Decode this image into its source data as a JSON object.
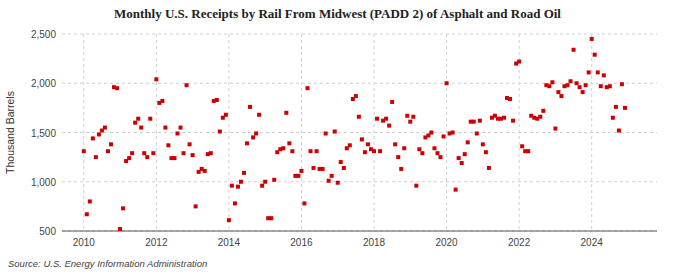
{
  "chart_data": {
    "type": "scatter",
    "title": "Monthly U.S. Receipts by Rail From Midwest (PADD 2) of Asphalt and Road Oil",
    "ylabel": "Thousand Barrels",
    "source": "Source: U.S. Energy Information Administration",
    "color": "#cc0000",
    "marker": "square",
    "grid": true,
    "xlim": [
      2009.4,
      2025.8
    ],
    "xticks": [
      2010,
      2012,
      2014,
      2016,
      2018,
      2020,
      2022,
      2024
    ],
    "ylim": [
      500,
      2500
    ],
    "yticks": [
      500,
      {
        "value": 1000,
        "label": "1,000"
      },
      {
        "value": 1500,
        "label": "1,500"
      },
      {
        "value": 2000,
        "label": "2,000"
      },
      {
        "value": 2500,
        "label": "2,500"
      }
    ],
    "x": [
      2010.0,
      2010.083,
      2010.167,
      2010.25,
      2010.333,
      2010.417,
      2010.5,
      2010.583,
      2010.667,
      2010.75,
      2010.833,
      2010.917,
      2011.0,
      2011.083,
      2011.167,
      2011.25,
      2011.333,
      2011.417,
      2011.5,
      2011.583,
      2011.667,
      2011.75,
      2011.833,
      2011.917,
      2012.0,
      2012.083,
      2012.167,
      2012.25,
      2012.333,
      2012.417,
      2012.5,
      2012.583,
      2012.667,
      2012.75,
      2012.833,
      2012.917,
      2013.0,
      2013.083,
      2013.167,
      2013.25,
      2013.333,
      2013.417,
      2013.5,
      2013.583,
      2013.667,
      2013.75,
      2013.833,
      2013.917,
      2014.0,
      2014.083,
      2014.167,
      2014.25,
      2014.333,
      2014.417,
      2014.5,
      2014.583,
      2014.667,
      2014.75,
      2014.833,
      2014.917,
      2015.0,
      2015.083,
      2015.167,
      2015.25,
      2015.333,
      2015.417,
      2015.5,
      2015.583,
      2015.667,
      2015.75,
      2015.833,
      2015.917,
      2016.0,
      2016.083,
      2016.167,
      2016.25,
      2016.333,
      2016.417,
      2016.5,
      2016.583,
      2016.667,
      2016.75,
      2016.833,
      2016.917,
      2017.0,
      2017.083,
      2017.167,
      2017.25,
      2017.333,
      2017.417,
      2017.5,
      2017.583,
      2017.667,
      2017.75,
      2017.833,
      2017.917,
      2018.0,
      2018.083,
      2018.167,
      2018.25,
      2018.333,
      2018.417,
      2018.5,
      2018.583,
      2018.667,
      2018.75,
      2018.833,
      2018.917,
      2019.0,
      2019.083,
      2019.167,
      2019.25,
      2019.333,
      2019.417,
      2019.5,
      2019.583,
      2019.667,
      2019.75,
      2019.833,
      2019.917,
      2020.0,
      2020.083,
      2020.167,
      2020.25,
      2020.333,
      2020.417,
      2020.5,
      2020.583,
      2020.667,
      2020.75,
      2020.833,
      2020.917,
      2021.0,
      2021.083,
      2021.167,
      2021.25,
      2021.333,
      2021.417,
      2021.5,
      2021.583,
      2021.667,
      2021.75,
      2021.833,
      2021.917,
      2022.0,
      2022.083,
      2022.167,
      2022.25,
      2022.333,
      2022.417,
      2022.5,
      2022.583,
      2022.667,
      2022.75,
      2022.833,
      2022.917,
      2023.0,
      2023.083,
      2023.167,
      2023.25,
      2023.333,
      2023.417,
      2023.5,
      2023.583,
      2023.667,
      2023.75,
      2023.833,
      2023.917,
      2024.0,
      2024.083,
      2024.167,
      2024.25,
      2024.333,
      2024.417,
      2024.5,
      2024.583,
      2024.667,
      2024.75,
      2024.833,
      2024.917
    ],
    "values": [
      1310,
      670,
      800,
      1440,
      1250,
      1480,
      1520,
      1550,
      1310,
      1380,
      1960,
      1950,
      520,
      730,
      1210,
      1240,
      1290,
      1600,
      1640,
      1550,
      1290,
      1250,
      1640,
      1290,
      2040,
      1800,
      1820,
      1550,
      1370,
      1240,
      1240,
      1490,
      1550,
      1290,
      1980,
      1380,
      1270,
      750,
      1100,
      1130,
      1110,
      1280,
      1290,
      1820,
      1830,
      1510,
      1650,
      1680,
      610,
      960,
      780,
      950,
      1000,
      1090,
      1390,
      1760,
      1450,
      1490,
      1680,
      960,
      1000,
      630,
      630,
      1020,
      1300,
      1330,
      1340,
      1700,
      1390,
      1310,
      1060,
      1060,
      1110,
      780,
      1950,
      1310,
      1140,
      1310,
      1130,
      1130,
      1490,
      1010,
      1060,
      1510,
      990,
      1200,
      1140,
      1340,
      1370,
      1840,
      1870,
      1660,
      1430,
      1300,
      1380,
      1330,
      1310,
      1640,
      1310,
      1620,
      1640,
      1570,
      1810,
      1380,
      1250,
      1130,
      1340,
      1670,
      1610,
      1660,
      960,
      1330,
      1290,
      1450,
      1470,
      1500,
      1340,
      1290,
      1250,
      1460,
      2000,
      1490,
      1500,
      920,
      1240,
      1190,
      1280,
      1400,
      1610,
      1610,
      1490,
      1620,
      1380,
      1300,
      1140,
      1650,
      1670,
      1640,
      1640,
      1650,
      1850,
      1840,
      1620,
      2200,
      2220,
      1360,
      1310,
      1310,
      1670,
      1650,
      1640,
      1660,
      1720,
      1980,
      1970,
      2010,
      1540,
      1910,
      1870,
      1970,
      1980,
      2020,
      2340,
      2000,
      1960,
      1910,
      1980,
      2110,
      2450,
      2290,
      2110,
      1970,
      2080,
      1960,
      1970,
      1650,
      1760,
      1520,
      1990,
      1750
    ]
  }
}
